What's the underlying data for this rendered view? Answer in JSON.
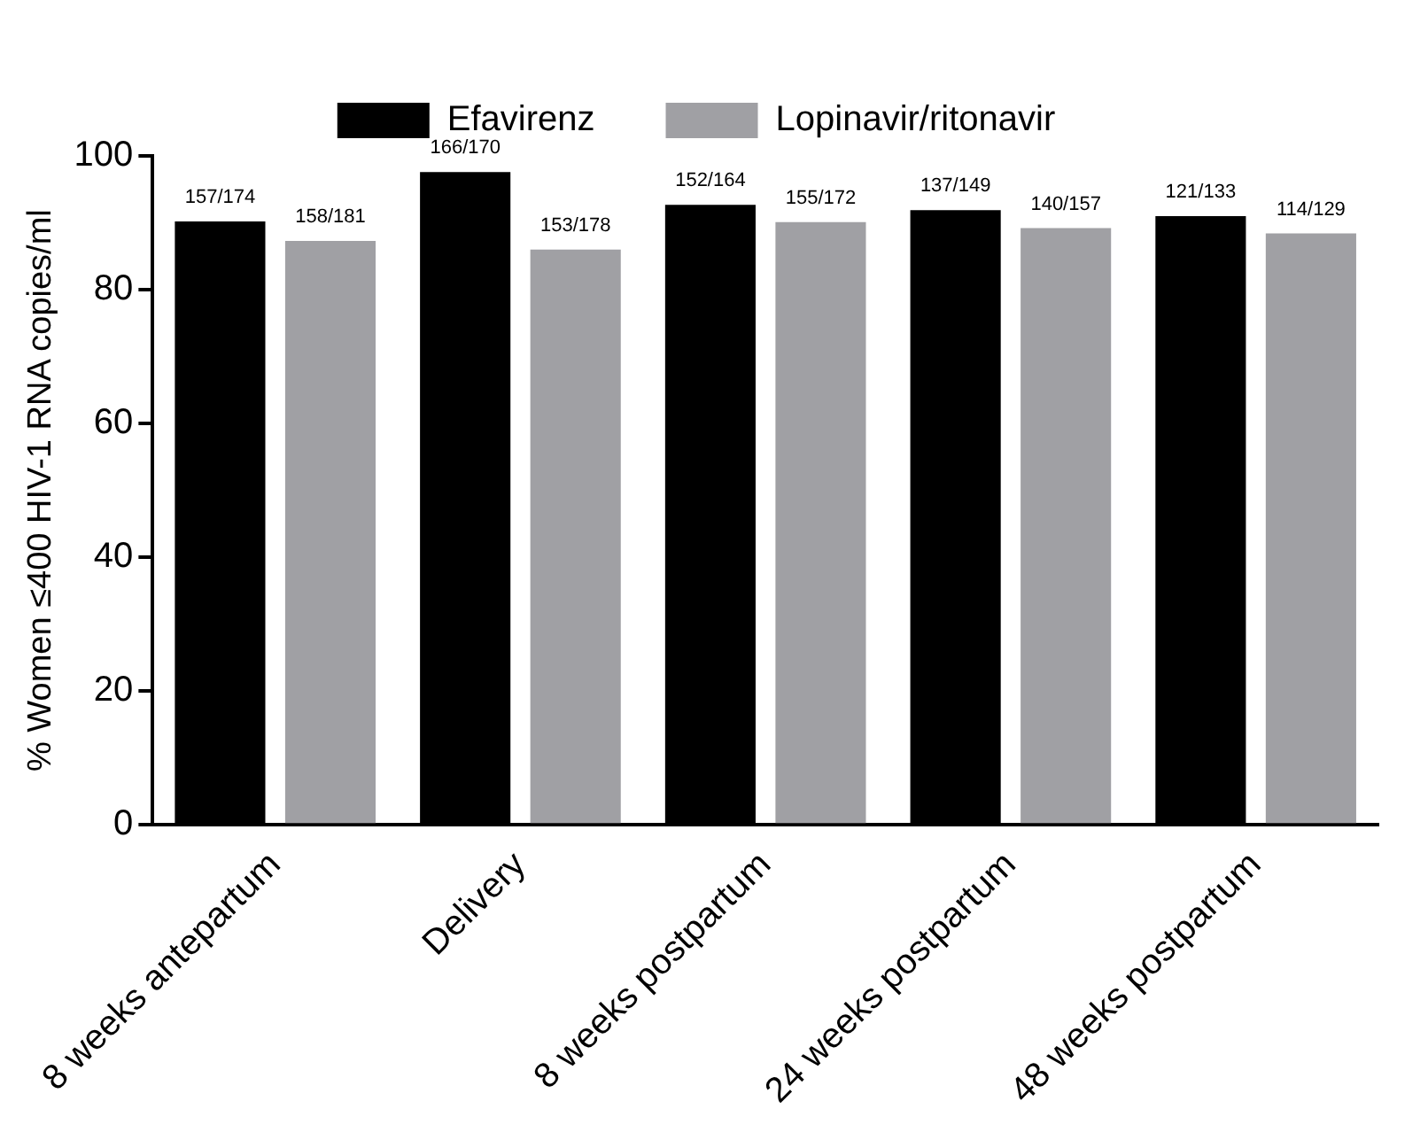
{
  "chart_data": {
    "type": "bar",
    "ylabel": "% Women ≤400 HIV-1 RNA copies/ml",
    "categories": [
      "8 weeks antepartum",
      "Delivery",
      "8 weeks postpartum",
      "24 weeks postpartum",
      "48 weeks postpartum"
    ],
    "series": [
      {
        "name": "Efavirenz",
        "color": "#000000",
        "values": [
          90.2,
          97.6,
          92.7,
          91.9,
          91.0
        ],
        "value_labels": [
          "157/174",
          "166/170",
          "152/164",
          "137/149",
          "121/133"
        ]
      },
      {
        "name": "Lopinavir/ritonavir",
        "color": "#a0a0a4",
        "values": [
          87.3,
          86.0,
          90.1,
          89.2,
          88.4
        ],
        "value_labels": [
          "158/181",
          "153/178",
          "155/172",
          "140/157",
          "114/129"
        ]
      }
    ],
    "ylim": [
      0,
      100
    ],
    "yticks": [
      0,
      20,
      40,
      60,
      80,
      100
    ],
    "grid": false,
    "legend": "top"
  }
}
